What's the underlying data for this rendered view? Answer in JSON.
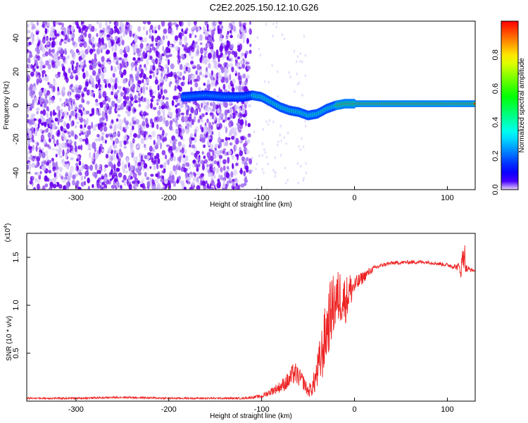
{
  "title": "C2E2.2025.150.12.10.G26",
  "chart_data": [
    {
      "type": "heatmap",
      "xlabel": "Height of straight line (km)",
      "ylabel": "Frequency (Hz)",
      "xlim": [
        -353,
        130
      ],
      "ylim": [
        -50,
        50
      ],
      "xticks": [
        -300,
        -200,
        -100,
        0,
        100
      ],
      "yticks": [
        -40,
        -20,
        0,
        20,
        40
      ],
      "colorbar": {
        "label": "Normalized spectral amplitude",
        "range": [
          0,
          1
        ],
        "ticks": [
          0.0,
          0.2,
          0.4,
          0.6,
          0.8
        ],
        "tick_labels": [
          "0.0",
          "0.2",
          "0.4",
          "0.6",
          "0.8"
        ]
      },
      "noise_region_x": [
        -353,
        -112
      ],
      "signal_track": {
        "x": [
          -185,
          -160,
          -140,
          -120,
          -110,
          -100,
          -90,
          -80,
          -70,
          -60,
          -50,
          -40,
          -30,
          -20,
          -10,
          0,
          30,
          60,
          90,
          115,
          130
        ],
        "y": [
          5,
          6,
          5,
          5,
          6,
          5,
          2,
          -1,
          -3,
          -4,
          -6,
          -5,
          -2,
          0,
          1,
          1,
          1,
          1,
          1,
          1,
          1
        ]
      },
      "colors": {
        "noise": "#7b00ff",
        "line": "#ff2200",
        "halo": "#00cc66"
      }
    },
    {
      "type": "line",
      "xlabel": "Height of straight line (km)",
      "ylabel": "SNR (10 * v/v)",
      "y_multiplier": "(x10⁴)",
      "y_multiplier_base": "(x10",
      "y_multiplier_exp": "4",
      "xlim": [
        -353,
        130
      ],
      "ylim": [
        0,
        1.75
      ],
      "xticks": [
        -300,
        -200,
        -100,
        0,
        100
      ],
      "yticks": [
        0.5,
        1.0,
        1.5
      ],
      "ytick_labels": [
        "0.5",
        "1.0",
        "1.5"
      ],
      "series": [
        {
          "color": "#ee2222",
          "x": [
            -353,
            -300,
            -250,
            -200,
            -150,
            -120,
            -100,
            -90,
            -80,
            -70,
            -65,
            -60,
            -55,
            -50,
            -45,
            -40,
            -35,
            -30,
            -25,
            -20,
            -15,
            -10,
            -5,
            0,
            10,
            20,
            30,
            40,
            60,
            80,
            100,
            110,
            115,
            118,
            120,
            125,
            130
          ],
          "y": [
            0.03,
            0.03,
            0.04,
            0.03,
            0.03,
            0.03,
            0.05,
            0.1,
            0.15,
            0.22,
            0.3,
            0.25,
            0.2,
            0.1,
            0.15,
            0.3,
            0.5,
            0.75,
            0.95,
            1.05,
            1.1,
            1.05,
            1.15,
            1.2,
            1.3,
            1.38,
            1.42,
            1.44,
            1.45,
            1.45,
            1.42,
            1.4,
            1.38,
            1.6,
            1.38,
            1.37,
            1.36
          ],
          "jitter": [
            0.01,
            0.01,
            0.01,
            0.01,
            0.01,
            0.01,
            0.02,
            0.04,
            0.06,
            0.1,
            0.12,
            0.1,
            0.08,
            0.06,
            0.1,
            0.2,
            0.3,
            0.35,
            0.35,
            0.3,
            0.3,
            0.25,
            0.2,
            0.1,
            0.06,
            0.03,
            0.02,
            0.02,
            0.02,
            0.02,
            0.02,
            0.03,
            0.1,
            0.2,
            0.05,
            0.02,
            0.02
          ]
        }
      ]
    }
  ]
}
